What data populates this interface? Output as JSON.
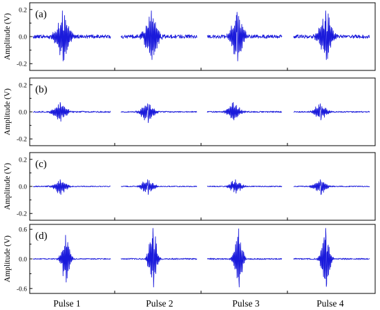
{
  "chart_data": {
    "type": "line",
    "categories": [
      "Pulse 1",
      "Pulse 2",
      "Pulse 3",
      "Pulse 4"
    ],
    "ylabel": "Amplitude (V)",
    "series_color": "#1a1adb",
    "panels": [
      {
        "label": "(a)",
        "ylim": [
          -0.25,
          0.25
        ],
        "yticks": [
          -0.2,
          0.0,
          0.2
        ],
        "ytick_labels": [
          "-0.2",
          "0.0",
          "0.2"
        ],
        "pulses": [
          {
            "max": 0.19,
            "min": -0.18,
            "peak_pos": 0.38
          },
          {
            "max": 0.19,
            "min": -0.17,
            "peak_pos": 0.4
          },
          {
            "max": 0.18,
            "min": -0.18,
            "peak_pos": 0.4
          },
          {
            "max": 0.19,
            "min": -0.17,
            "peak_pos": 0.42
          }
        ]
      },
      {
        "label": "(b)",
        "ylim": [
          -0.25,
          0.25
        ],
        "yticks": [
          -0.2,
          0.0,
          0.2
        ],
        "ytick_labels": [
          "-0.2",
          "0.0",
          "0.2"
        ],
        "pulses": [
          {
            "max": 0.07,
            "min": -0.07,
            "peak_pos": 0.35
          },
          {
            "max": 0.06,
            "min": -0.08,
            "peak_pos": 0.35
          },
          {
            "max": 0.07,
            "min": -0.06,
            "peak_pos": 0.35
          },
          {
            "max": 0.06,
            "min": -0.06,
            "peak_pos": 0.35
          }
        ]
      },
      {
        "label": "(c)",
        "ylim": [
          -0.25,
          0.25
        ],
        "yticks": [
          -0.2,
          0.0,
          0.2
        ],
        "ytick_labels": [
          "-0.2",
          "0.0",
          "0.2"
        ],
        "pulses": [
          {
            "max": 0.05,
            "min": -0.06,
            "peak_pos": 0.35
          },
          {
            "max": 0.05,
            "min": -0.06,
            "peak_pos": 0.35
          },
          {
            "max": 0.05,
            "min": -0.05,
            "peak_pos": 0.38
          },
          {
            "max": 0.05,
            "min": -0.06,
            "peak_pos": 0.35
          }
        ]
      },
      {
        "label": "(d)",
        "ylim": [
          -0.7,
          0.7
        ],
        "yticks": [
          -0.6,
          0.0,
          0.6
        ],
        "ytick_labels": [
          "-0.6",
          "0.0",
          "0.6"
        ],
        "pulses": [
          {
            "max": 0.48,
            "min": -0.47,
            "peak_pos": 0.42
          },
          {
            "max": 0.62,
            "min": -0.57,
            "peak_pos": 0.42
          },
          {
            "max": 0.61,
            "min": -0.57,
            "peak_pos": 0.42
          },
          {
            "max": 0.62,
            "min": -0.56,
            "peak_pos": 0.42
          }
        ]
      }
    ]
  }
}
